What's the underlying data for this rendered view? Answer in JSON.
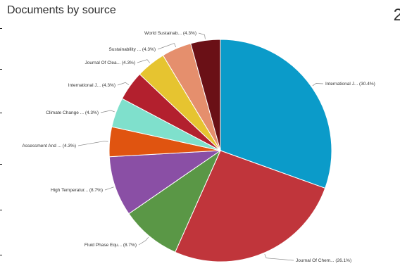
{
  "page": {
    "title": "Documents by source",
    "corner_fragment": "2"
  },
  "chart_data": {
    "type": "pie",
    "title": "Documents by source",
    "slices": [
      {
        "label": "International J... (30.4%)",
        "value": 30.4,
        "color": "#0b9bc9"
      },
      {
        "label": "Journal Of Chem... (26.1%)",
        "value": 26.1,
        "color": "#c0353b"
      },
      {
        "label": "Fluid Phase Equ... (8.7%)",
        "value": 8.7,
        "color": "#5a9746"
      },
      {
        "label": "High Temperatur... (8.7%)",
        "value": 8.7,
        "color": "#8a4fa5"
      },
      {
        "label": "Assessment And ... (4.3%)",
        "value": 4.3,
        "color": "#e05410"
      },
      {
        "label": "Climate Change ... (4.3%)",
        "value": 4.3,
        "color": "#7fe0cc"
      },
      {
        "label": "International J... (4.3%)",
        "value": 4.3,
        "color": "#b3202e"
      },
      {
        "label": "Journal Of Clea... (4.3%)",
        "value": 4.3,
        "color": "#e6c430"
      },
      {
        "label": "Sustainability ... (4.3%)",
        "value": 4.3,
        "color": "#e58f6d"
      },
      {
        "label": "World Sustainab... (4.3%)",
        "value": 4.3,
        "color": "#6a1016"
      }
    ]
  }
}
